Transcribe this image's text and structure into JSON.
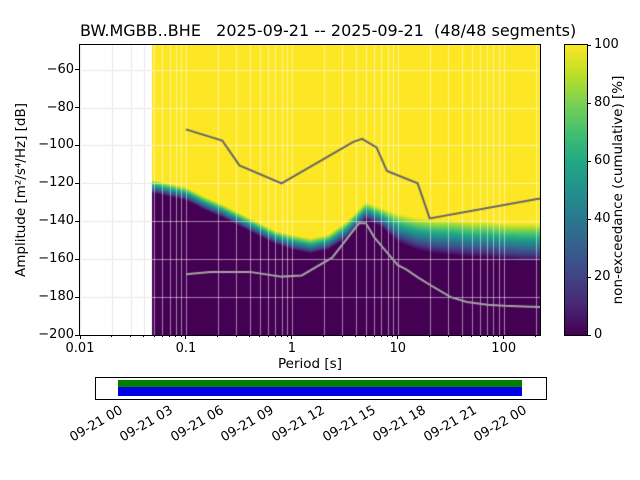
{
  "chart_data": {
    "type": "heatmap",
    "title": "BW.MGBB..BHE   2025-09-21 -- 2025-09-21  (48/48 segments)",
    "station": "BW.MGBB..BHE",
    "date_range": "2025-09-21 -- 2025-09-21",
    "segments": "48/48 segments",
    "xlabel": "Period [s]",
    "ylabel": "Amplitude [m²/s⁴/Hz] [dB]",
    "xscale": "log",
    "xlim": [
      0.01,
      220
    ],
    "ylim": [
      -200,
      -47
    ],
    "grid": true,
    "xticks": [
      0.01,
      0.1,
      1,
      10,
      100
    ],
    "xtick_labels": [
      "0.01",
      "0.1",
      "1",
      "10",
      "100"
    ],
    "yticks": [
      -60,
      -80,
      -100,
      -120,
      -140,
      -160,
      -180,
      -200
    ],
    "ytick_labels": [
      "−60",
      "−80",
      "−100",
      "−120",
      "−140",
      "−160",
      "−180",
      "−200"
    ],
    "colormap_name": "viridis",
    "colorbar": {
      "label": "non-exceedance (cumulative) [%]",
      "ticks": [
        0,
        20,
        40,
        60,
        80,
        100
      ],
      "tick_labels": [
        "0",
        "20",
        "40",
        "60",
        "80",
        "100"
      ],
      "stops": [
        {
          "pos": 0.0,
          "color": "#440154"
        },
        {
          "pos": 0.1,
          "color": "#482475"
        },
        {
          "pos": 0.2,
          "color": "#414487"
        },
        {
          "pos": 0.3,
          "color": "#355f8d"
        },
        {
          "pos": 0.4,
          "color": "#2a788e"
        },
        {
          "pos": 0.5,
          "color": "#21918c"
        },
        {
          "pos": 0.6,
          "color": "#22a884"
        },
        {
          "pos": 0.7,
          "color": "#44bf70"
        },
        {
          "pos": 0.8,
          "color": "#7ad151"
        },
        {
          "pos": 0.9,
          "color": "#bddf26"
        },
        {
          "pos": 1.0,
          "color": "#fde725"
        }
      ]
    },
    "data_start_period": 0.047,
    "distribution": {
      "note": "Cumulative non-exceedance transition band vs period: above db_at_100 the value is 100% (yellow), below db_at_0 it is 0% (dark purple), viridis gradient between.",
      "periods": [
        0.047,
        0.07,
        0.1,
        0.15,
        0.22,
        0.33,
        0.5,
        0.7,
        1.0,
        1.5,
        2.2,
        3.3,
        5.0,
        7.0,
        10,
        15,
        22,
        33,
        50,
        70,
        100,
        150,
        200
      ],
      "db_at_100": [
        -118,
        -120,
        -122,
        -127,
        -131,
        -136,
        -141,
        -145,
        -147,
        -149,
        -147,
        -140,
        -130,
        -133,
        -136,
        -138,
        -139,
        -139,
        -140,
        -140,
        -141,
        -141,
        -141
      ],
      "db_at_0": [
        -125,
        -127,
        -129,
        -134,
        -138,
        -143,
        -148,
        -152,
        -155,
        -157,
        -155,
        -149,
        -139,
        -143,
        -151,
        -155,
        -157,
        -158,
        -159,
        -159,
        -160,
        -161,
        -161
      ]
    },
    "noise_models": {
      "nhnm": {
        "name": "NHNM",
        "color": "#666666",
        "points": [
          [
            0.1,
            -91.5
          ],
          [
            0.22,
            -97.4
          ],
          [
            0.32,
            -110.5
          ],
          [
            0.8,
            -120.0
          ],
          [
            3.8,
            -98.1
          ],
          [
            4.6,
            -96.5
          ],
          [
            6.3,
            -101.0
          ],
          [
            7.9,
            -113.5
          ],
          [
            15.4,
            -120.0
          ],
          [
            20.0,
            -138.5
          ],
          [
            220,
            -128.0
          ]
        ]
      },
      "nlnm": {
        "name": "NLNM",
        "color": "#a3a3a3",
        "points": [
          [
            0.1,
            -168.0
          ],
          [
            0.17,
            -166.7
          ],
          [
            0.4,
            -166.7
          ],
          [
            0.8,
            -169.2
          ],
          [
            1.24,
            -168.6
          ],
          [
            2.4,
            -159.2
          ],
          [
            4.3,
            -141.1
          ],
          [
            5.0,
            -141.1
          ],
          [
            6.0,
            -148.5
          ],
          [
            10.0,
            -163.2
          ],
          [
            12.0,
            -165.4
          ],
          [
            15.6,
            -169.7
          ],
          [
            21.9,
            -174.8
          ],
          [
            31.6,
            -180.0
          ],
          [
            45.0,
            -182.6
          ],
          [
            70.0,
            -184.0
          ],
          [
            101,
            -184.6
          ],
          [
            154,
            -185.0
          ],
          [
            220,
            -185.2
          ]
        ]
      }
    }
  },
  "timeline": {
    "tick_labels": [
      "09-21 00",
      "09-21 03",
      "09-21 06",
      "09-21 09",
      "09-21 12",
      "09-21 15",
      "09-21 18",
      "09-21 21",
      "09-22 00"
    ],
    "coverage": {
      "start_frac": 0.0,
      "end_frac": 1.0,
      "colors": [
        "#008000",
        "#0000e8"
      ]
    },
    "pad_frac": 0.048
  }
}
